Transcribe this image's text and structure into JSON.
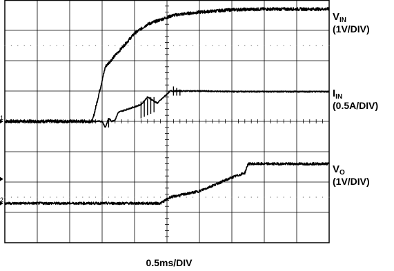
{
  "chart_data": {
    "type": "line",
    "title": "",
    "xlabel": "0.5ms/DIV",
    "grid": true,
    "divisions": {
      "x": 10,
      "y": 8
    },
    "x_unit": "ms",
    "series": [
      {
        "name_main": "V",
        "name_sub": "IN",
        "scale": "(1V/DIV)",
        "color": "#000000",
        "baseline_div": 4.0,
        "noise_div": 0.05,
        "x": [
          0,
          0.5,
          1.0,
          1.35,
          1.55,
          2.0,
          2.2,
          2.6,
          3.0,
          3.5,
          4.0,
          4.5,
          5.0
        ],
        "y": [
          0,
          0,
          0,
          0,
          1.8,
          2.9,
          3.2,
          3.5,
          3.6,
          3.68,
          3.7,
          3.7,
          3.7
        ]
      },
      {
        "name_main": "I",
        "name_sub": "IN",
        "scale": "(0.5A/DIV)",
        "color": "#000000",
        "baseline_div": 4.0,
        "noise_div": 0.02,
        "x": [
          0,
          1.0,
          1.5,
          1.55,
          1.6,
          1.65,
          1.7,
          1.75,
          2.1,
          2.2,
          2.35,
          2.55,
          3.0,
          3.5,
          4.0,
          5.0
        ],
        "y": [
          0,
          0,
          0,
          -0.2,
          0.1,
          0,
          0.05,
          0.3,
          0.55,
          0.8,
          0.6,
          1.0,
          1.0,
          0.98,
          0.98,
          0.98
        ],
        "spikes": [
          {
            "x": 1.6,
            "y": [
              -0.2,
              0.1
            ]
          },
          {
            "x": 2.1,
            "y": [
              0.1,
              0.65
            ]
          },
          {
            "x": 2.15,
            "y": [
              0.15,
              0.7
            ]
          },
          {
            "x": 2.2,
            "y": [
              0.2,
              0.75
            ]
          },
          {
            "x": 2.25,
            "y": [
              0.25,
              0.8
            ]
          },
          {
            "x": 2.3,
            "y": [
              0.3,
              0.8
            ]
          },
          {
            "x": 2.6,
            "y": [
              0.85,
              1.15
            ]
          },
          {
            "x": 2.65,
            "y": [
              0.85,
              1.1
            ]
          },
          {
            "x": 2.7,
            "y": [
              0.85,
              1.05
            ]
          }
        ]
      },
      {
        "name_main": "V",
        "name_sub": "O",
        "scale": "(1V/DIV)",
        "color": "#000000",
        "baseline_div": 1.3,
        "noise_div": 0.04,
        "x": [
          0,
          1.8,
          2.4,
          2.55,
          3.0,
          3.5,
          3.7,
          3.75,
          4.0,
          5.0
        ],
        "y": [
          0,
          0,
          0,
          0.2,
          0.4,
          0.85,
          1.0,
          1.3,
          1.3,
          1.3
        ]
      }
    ],
    "channel_markers": [
      {
        "label": "1",
        "level_div": 4.0
      },
      {
        "label": "",
        "level_div": 2.1
      },
      {
        "label": "2",
        "level_div": 1.3
      }
    ]
  }
}
